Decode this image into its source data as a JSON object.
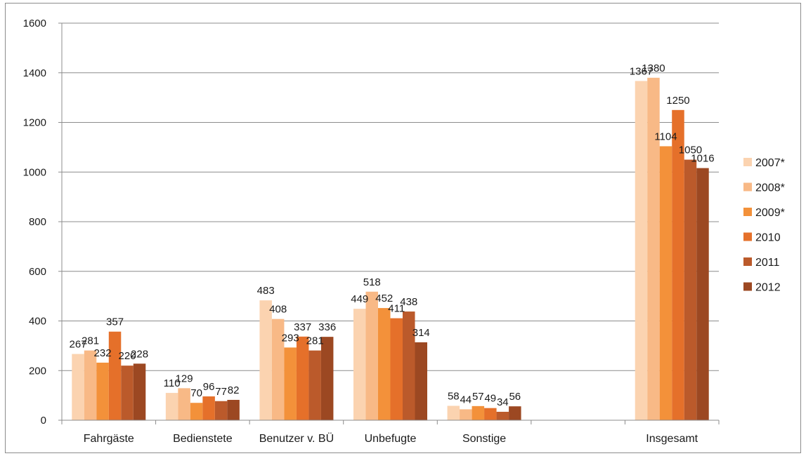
{
  "chart_data": {
    "type": "bar",
    "categories": [
      "Fahrgäste",
      "Bedienstete",
      "Benutzer v. BÜ",
      "Unbefugte",
      "Sonstige",
      "",
      "Insgesamt"
    ],
    "series": [
      {
        "name": "2007*",
        "color": "#fbd3b0",
        "values": [
          267,
          110,
          483,
          449,
          58,
          null,
          1367
        ]
      },
      {
        "name": "2008*",
        "color": "#f8b986",
        "values": [
          281,
          129,
          408,
          518,
          44,
          null,
          1380
        ]
      },
      {
        "name": "2009*",
        "color": "#f3913a",
        "values": [
          232,
          70,
          293,
          452,
          57,
          null,
          1104
        ]
      },
      {
        "name": "2010",
        "color": "#e5702a",
        "values": [
          357,
          96,
          337,
          411,
          49,
          null,
          1250
        ]
      },
      {
        "name": "2011",
        "color": "#bb5a2b",
        "values": [
          220,
          77,
          281,
          438,
          34,
          null,
          1050
        ]
      },
      {
        "name": "2012",
        "color": "#9c4822",
        "values": [
          228,
          82,
          336,
          314,
          56,
          null,
          1016
        ]
      }
    ],
    "ylim": [
      0,
      1600
    ],
    "yticks": [
      0,
      200,
      400,
      600,
      800,
      1000,
      1200,
      1400,
      1600
    ],
    "grid": true,
    "legend_position": "right",
    "data_labels": true,
    "title": "",
    "xlabel": "",
    "ylabel": ""
  }
}
